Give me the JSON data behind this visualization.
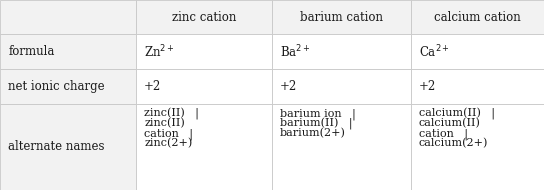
{
  "col_headers": [
    "zinc cation",
    "barium cation",
    "calcium cation"
  ],
  "row_headers": [
    "formula",
    "net ionic charge",
    "alternate names"
  ],
  "formulas": [
    "Zn$^{2+}$",
    "Ba$^{2+}$",
    "Ca$^{2+}$"
  ],
  "charges": [
    "+2",
    "+2",
    "+2"
  ],
  "alt_names_lines": [
    [
      "zinc(II)   |",
      "zinc(II)",
      "cation   |",
      "zinc(2+)"
    ],
    [
      "barium ion   |",
      "barium(II)   |",
      "barium(2+)",
      ""
    ],
    [
      "calcium(II)   |",
      "calcium(II)",
      "cation   |",
      "calcium(2+)"
    ]
  ],
  "header_bg": "#f2f2f2",
  "cell_bg": "#ffffff",
  "border_color": "#c8c8c8",
  "text_color": "#1a1a1a",
  "font_size": 8.5
}
